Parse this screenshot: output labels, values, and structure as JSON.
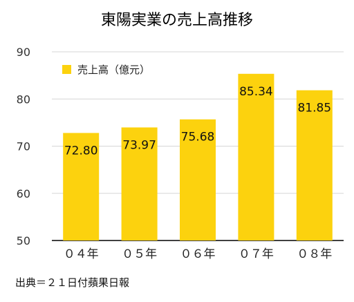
{
  "chart_data": {
    "type": "bar",
    "title": "東陽実業の売上高推移",
    "categories": [
      "０４年",
      "０５年",
      "０６年",
      "０７年",
      "０８年"
    ],
    "series": [
      {
        "name": "売上高（億元）",
        "values": [
          72.8,
          73.97,
          75.68,
          85.34,
          81.85
        ]
      }
    ],
    "data_labels": [
      "72.80",
      "73.97",
      "75.68",
      "85.34",
      "81.85"
    ],
    "ylim": [
      50,
      90
    ],
    "yticks": [
      50,
      60,
      70,
      80,
      90
    ],
    "grid": true,
    "legend_position": "top-left",
    "bar_color": "#FCD20E",
    "source_note": "出典＝２１日付蘋果日報"
  }
}
